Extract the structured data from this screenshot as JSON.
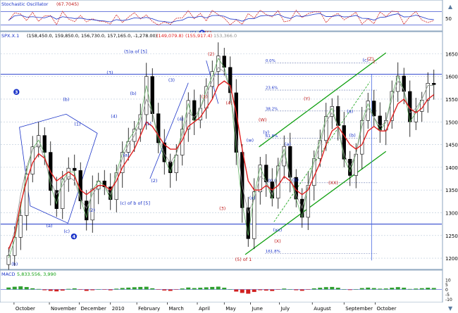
{
  "header": {
    "stoch_label": "Stochastic Oscillator",
    "stoch_value": "(67.7045)",
    "price_label": "SPX.X.1",
    "ohlc": "(158,450.0, 159,850.0, 156,730.0, 157,165.0, -1,278.00)",
    "ma1_value": "(149,079.8)",
    "ma2_value": "(155,917.4)",
    "ma3_value": "153,366.0",
    "macd_label": "MACD",
    "macd_values": "5,833.556, 3,990"
  },
  "colors": {
    "accent_blue": "#1a33c8",
    "wave_red": "#c01818",
    "channel_green": "#10a010",
    "ma_red": "#e02020",
    "ma_grey": "#909090",
    "ma_green": "#60b060",
    "grid": "#b8c8d8"
  },
  "chart_data": [
    {
      "type": "line",
      "name": "stochastic",
      "ylim": [
        0,
        100
      ],
      "yticks": [
        50
      ],
      "series": [
        {
          "values": [
            40,
            74,
            69,
            40,
            77,
            36,
            61,
            62,
            22,
            81,
            47,
            35,
            63,
            34,
            48,
            38,
            35,
            24,
            66,
            31,
            55,
            75,
            47,
            65,
            36,
            20,
            34,
            23,
            50,
            52,
            84,
            48,
            72,
            38,
            85,
            66,
            51,
            21,
            43,
            23,
            71,
            51,
            86,
            67,
            56,
            84,
            34,
            40,
            86,
            53,
            71,
            79,
            78,
            31,
            59,
            72,
            43,
            59,
            77,
            24,
            48,
            26,
            78,
            58,
            82,
            79,
            23,
            58,
            80,
            42,
            31,
            40
          ]
        },
        {
          "values": [
            41,
            61,
            64,
            55,
            57,
            54,
            52,
            60,
            46,
            57,
            53,
            49,
            51,
            46,
            44,
            40,
            38,
            34,
            44,
            40,
            44,
            52,
            50,
            54,
            48,
            38,
            36,
            31,
            38,
            42,
            55,
            53,
            59,
            52,
            62,
            63,
            59,
            47,
            45,
            37,
            48,
            49,
            60,
            63,
            61,
            68,
            56,
            49,
            61,
            58,
            62,
            68,
            71,
            58,
            58,
            63,
            56,
            57,
            63,
            50,
            49,
            42,
            54,
            56,
            65,
            70,
            56,
            57,
            64,
            56,
            47,
            44
          ]
        }
      ]
    },
    {
      "type": "candlestick",
      "name": "price",
      "ylim": [
        11800,
        16800
      ],
      "yticks": [
        12000,
        12500,
        13000,
        13500,
        14000,
        14500,
        15000,
        15500,
        16000,
        16500
      ],
      "x_labels": [
        "October",
        "November",
        "December",
        "2010",
        "February",
        "March",
        "April",
        "May",
        "June",
        "July",
        "August",
        "September",
        "October"
      ],
      "close": [
        12060,
        12460,
        12940,
        13850,
        14450,
        14700,
        14330,
        13490,
        13090,
        13740,
        13980,
        13930,
        13260,
        12840,
        13520,
        13700,
        13570,
        13290,
        13880,
        14330,
        14570,
        14840,
        15160,
        16000,
        15180,
        14540,
        14120,
        13880,
        14270,
        14840,
        15470,
        15040,
        15300,
        15780,
        16110,
        16450,
        16200,
        15640,
        14330,
        13110,
        12430,
        13460,
        14050,
        13680,
        13320,
        14030,
        14460,
        13780,
        13300,
        12900,
        13600,
        14190,
        14590,
        15120,
        15340,
        14920,
        14180,
        13820,
        14290,
        15030,
        15460,
        15130,
        14820,
        15030,
        15670,
        16010,
        15670,
        15000,
        15230,
        15480,
        15850,
        15820
      ],
      "ma_red": [
        12200,
        12500,
        13200,
        13700,
        14100,
        14300,
        14200,
        13900,
        13700,
        13800,
        13900,
        13800,
        13500,
        13400,
        13500,
        13600,
        13600,
        13500,
        13700,
        14000,
        14200,
        14400,
        14700,
        15000,
        14900,
        14700,
        14500,
        14400,
        14400,
        14600,
        14900,
        15000,
        15100,
        15300,
        15500,
        15800,
        15900,
        15800,
        15200,
        14400,
        13700,
        13500,
        13500,
        13600,
        13500,
        13600,
        13800,
        13700,
        13500,
        13400,
        13500,
        13800,
        14100,
        14500,
        14800,
        14900,
        14700,
        14500,
        14400,
        14500,
        14800,
        14900,
        14800,
        14800,
        15100,
        15400,
        15500,
        15300,
        15200,
        15300,
        15500,
        15600
      ],
      "ma_grey": [
        12100,
        12600,
        13400,
        14000,
        14400,
        14500,
        14200,
        13700,
        13400,
        13600,
        13800,
        13700,
        13300,
        13100,
        13400,
        13600,
        13600,
        13400,
        13800,
        14200,
        14500,
        14700,
        15000,
        15500,
        15200,
        14700,
        14300,
        14100,
        14300,
        14700,
        15200,
        15100,
        15300,
        15600,
        15900,
        16200,
        16100,
        15700,
        14700,
        13600,
        13000,
        13300,
        13800,
        13700,
        13400,
        13900,
        14300,
        13800,
        13400,
        13100,
        13600,
        14100,
        14500,
        15000,
        15200,
        14900,
        14300,
        14000,
        14300,
        14900,
        15300,
        15100,
        14900,
        15000,
        15500,
        15900,
        15700,
        15200,
        15300,
        15500,
        15800,
        15800
      ],
      "ma_green": [
        12000,
        12400,
        13100,
        13900,
        14400,
        14600,
        14300,
        13600,
        13200,
        13700,
        13900,
        13900,
        13300,
        12900,
        13500,
        13700,
        13600,
        13300,
        13900,
        14300,
        14600,
        14800,
        15100,
        15800,
        15200,
        14600,
        14200,
        13900,
        14300,
        14800,
        15400,
        15000,
        15300,
        15700,
        16000,
        16400,
        16200,
        15700,
        14400,
        13200,
        12500,
        13400,
        14000,
        13700,
        13300,
        14000,
        14400,
        13800,
        13300,
        12900,
        13600,
        14200,
        14600,
        15100,
        15300,
        14900,
        14200,
        13900,
        14300,
        15000,
        15400,
        15100,
        14800,
        15000,
        15600,
        16000,
        15700,
        15000,
        15200,
        15500,
        15800,
        15800
      ],
      "fib_labels": [
        "0.0%",
        "23.6%",
        "38.2%",
        "61.8%",
        "100.0%",
        "161.8%"
      ],
      "annotations": [
        {
          "text": "(b)",
          "x": 1,
          "y": 11840,
          "color": "blue"
        },
        {
          "text": "3",
          "x": 1.3,
          "y": 15620,
          "color": "blue",
          "circled": true
        },
        {
          "text": "(b)",
          "x": 9.6,
          "y": 15460,
          "color": "blue"
        },
        {
          "text": "(1)",
          "x": 11.5,
          "y": 14920,
          "color": "blue"
        },
        {
          "text": "(2)",
          "x": 13.9,
          "y": 13020,
          "color": "blue"
        },
        {
          "text": "(a)",
          "x": 6.8,
          "y": 12680,
          "color": "blue"
        },
        {
          "text": "(c)",
          "x": 9.7,
          "y": 12560,
          "color": "blue"
        },
        {
          "text": "4",
          "x": 10.9,
          "y": 12440,
          "color": "blue",
          "circled": true
        },
        {
          "text": "(3)",
          "x": 16.9,
          "y": 16050,
          "color": "blue"
        },
        {
          "text": "(5)a of [5]",
          "x": 21.2,
          "y": 16510,
          "color": "blue"
        },
        {
          "text": "(4)",
          "x": 17.6,
          "y": 15090,
          "color": "blue"
        },
        {
          "text": "(b)",
          "x": 20.8,
          "y": 15590,
          "color": "blue"
        },
        {
          "text": "(1)",
          "x": 23.3,
          "y": 14930,
          "color": "blue"
        },
        {
          "text": "(2)",
          "x": 24.3,
          "y": 13670,
          "color": "blue"
        },
        {
          "text": "(a)",
          "x": 19.6,
          "y": 14240,
          "color": "blue"
        },
        {
          "text": "(c) of b of [5]",
          "x": 21.1,
          "y": 13180,
          "color": "blue"
        },
        {
          "text": "(3)",
          "x": 27.2,
          "y": 15890,
          "color": "blue"
        },
        {
          "text": "(4)",
          "x": 28.7,
          "y": 15030,
          "color": "blue"
        },
        {
          "text": "(5)",
          "x": 30.8,
          "y": 16920,
          "color": "blue"
        },
        {
          "text": "(c)",
          "x": 31.5,
          "y": 16910,
          "color": "blue"
        },
        {
          "text": "5",
          "x": 32.3,
          "y": 16920,
          "color": "blue",
          "circled": true
        },
        {
          "text": "[5]",
          "x": 33.3,
          "y": 16920,
          "color": "red"
        },
        {
          "text": "(2)",
          "x": 33.8,
          "y": 16460,
          "color": "red"
        },
        {
          "text": "(1)",
          "x": 32.7,
          "y": 15520,
          "color": "red"
        },
        {
          "text": "(4)",
          "x": 36.8,
          "y": 15380,
          "color": "red"
        },
        {
          "text": "(3)",
          "x": 35.7,
          "y": 13060,
          "color": "red"
        },
        {
          "text": "(5) of 1",
          "x": 39.2,
          "y": 11940,
          "color": "red"
        },
        {
          "text": "(w)",
          "x": 40.3,
          "y": 14560,
          "color": "blue"
        },
        {
          "text": "(x)",
          "x": 40.7,
          "y": 13290,
          "color": "blue"
        },
        {
          "text": "(W)",
          "x": 42.4,
          "y": 15010,
          "color": "red"
        },
        {
          "text": "(y)",
          "x": 43.0,
          "y": 14740,
          "color": "blue"
        },
        {
          "text": "(a)",
          "x": 46.6,
          "y": 14480,
          "color": "blue"
        },
        {
          "text": "(b)",
          "x": 47.9,
          "y": 13690,
          "color": "blue"
        },
        {
          "text": "(xx)",
          "x": 44.9,
          "y": 12590,
          "color": "blue"
        },
        {
          "text": "(X)",
          "x": 44.9,
          "y": 12340,
          "color": "red"
        },
        {
          "text": "(Y)",
          "x": 49.8,
          "y": 15480,
          "color": "red"
        },
        {
          "text": "(a)",
          "x": 57.0,
          "y": 15200,
          "color": "blue"
        },
        {
          "text": "(XX)",
          "x": 54.2,
          "y": 13630,
          "color": "red"
        },
        {
          "text": "(b)",
          "x": 57.4,
          "y": 14670,
          "color": "blue"
        },
        {
          "text": "(c)",
          "x": 59.6,
          "y": 16330,
          "color": "blue"
        },
        {
          "text": "(Z)",
          "x": 60.4,
          "y": 16350,
          "color": "red"
        },
        {
          "text": "2",
          "x": 61.0,
          "y": 16300,
          "color": "red"
        }
      ]
    },
    {
      "type": "bar",
      "name": "macd_histogram",
      "ylim": [
        -12,
        12
      ],
      "yticks": [
        10,
        5,
        0,
        -5,
        -10
      ],
      "values": [
        2.0,
        2.8,
        3.2,
        2.5,
        1.2,
        0.5,
        -0.8,
        -1.5,
        -2.0,
        -1.2,
        0.6,
        1.1,
        -0.4,
        -1.5,
        -0.8,
        0.2,
        -0.3,
        -0.9,
        0.8,
        1.5,
        1.9,
        2.3,
        2.6,
        2.8,
        1.2,
        -0.3,
        -1.1,
        -1.5,
        -0.2,
        1.0,
        2.0,
        1.4,
        1.8,
        2.2,
        2.6,
        2.9,
        1.8,
        0.3,
        -2.2,
        -3.6,
        -4.4,
        -2.6,
        -0.8,
        -1.2,
        -1.6,
        -0.2,
        0.9,
        0.1,
        -0.8,
        -1.4,
        -0.2,
        1.1,
        1.8,
        2.4,
        2.6,
        1.8,
        0.2,
        -0.6,
        0.3,
        1.4,
        1.9,
        1.4,
        0.8,
        1.0,
        1.8,
        2.4,
        1.8,
        0.5,
        0.9,
        1.3,
        1.8,
        1.5
      ]
    }
  ]
}
